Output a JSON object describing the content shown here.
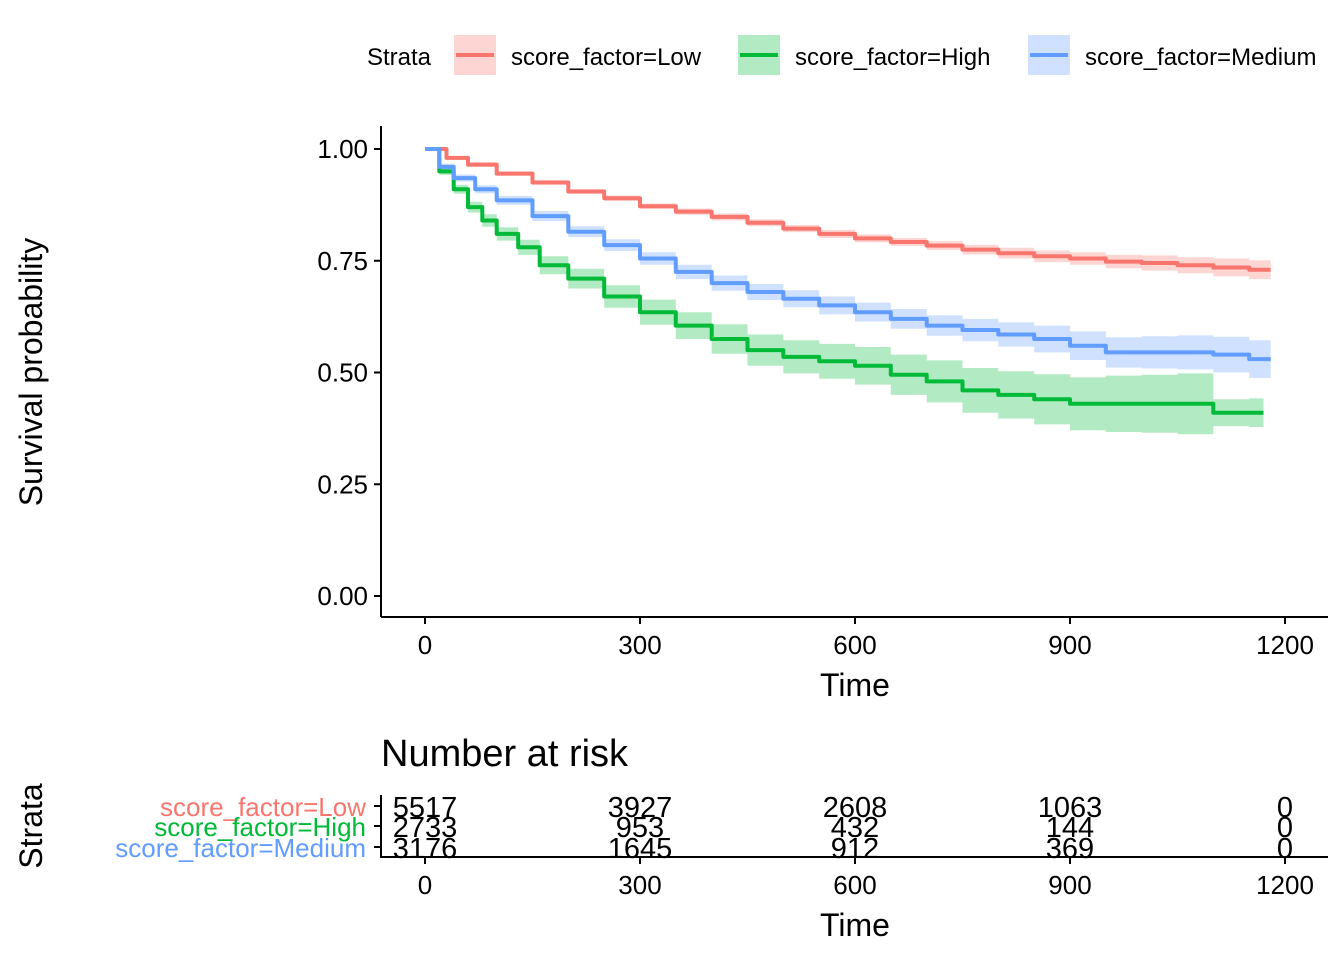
{
  "chart_data": {
    "type": "line",
    "subtype": "kaplan-meier survival curves with risk table",
    "legend": {
      "title": "Strata",
      "position": "top",
      "entries": [
        "score_factor=Low",
        "score_factor=High",
        "score_factor=Medium"
      ]
    },
    "xlabel": "Time",
    "ylabel": "Survival probability",
    "xlim": [
      -100,
      1200
    ],
    "ylim": [
      -0.05,
      1.05
    ],
    "xticks": [
      0,
      300,
      600,
      900,
      1200
    ],
    "xtick_labels": [
      "0",
      "300",
      "600",
      "900",
      "1200"
    ],
    "yticks": [
      0,
      0.25,
      0.5,
      0.75,
      1
    ],
    "ytick_labels": [
      "0.00",
      "0.25",
      "0.50",
      "0.75",
      "1.00"
    ],
    "series": [
      {
        "name": "score_factor=Low",
        "color": "#F8766D",
        "confidence_band": true,
        "x": [
          0,
          30,
          60,
          100,
          150,
          200,
          250,
          300,
          350,
          400,
          450,
          500,
          550,
          600,
          650,
          700,
          750,
          800,
          850,
          900,
          950,
          1000,
          1050,
          1100,
          1150,
          1180
        ],
        "y": [
          1.0,
          0.98,
          0.965,
          0.945,
          0.925,
          0.905,
          0.89,
          0.872,
          0.86,
          0.848,
          0.835,
          0.822,
          0.81,
          0.8,
          0.792,
          0.784,
          0.775,
          0.767,
          0.76,
          0.755,
          0.748,
          0.745,
          0.74,
          0.735,
          0.73,
          0.73
        ],
        "lower": [
          1.0,
          0.976,
          0.96,
          0.94,
          0.92,
          0.9,
          0.884,
          0.866,
          0.853,
          0.84,
          0.827,
          0.814,
          0.801,
          0.791,
          0.783,
          0.774,
          0.764,
          0.755,
          0.747,
          0.741,
          0.733,
          0.728,
          0.722,
          0.715,
          0.709,
          0.707
        ],
        "upper": [
          1.0,
          0.984,
          0.97,
          0.95,
          0.93,
          0.91,
          0.896,
          0.878,
          0.867,
          0.856,
          0.843,
          0.83,
          0.819,
          0.809,
          0.801,
          0.794,
          0.786,
          0.779,
          0.773,
          0.769,
          0.763,
          0.762,
          0.758,
          0.755,
          0.751,
          0.753
        ]
      },
      {
        "name": "score_factor=High",
        "color": "#00BA38",
        "confidence_band": true,
        "x": [
          0,
          20,
          40,
          60,
          80,
          100,
          130,
          160,
          200,
          250,
          300,
          350,
          400,
          450,
          500,
          550,
          600,
          650,
          700,
          750,
          800,
          850,
          900,
          950,
          1000,
          1050,
          1100,
          1150,
          1170
        ],
        "y": [
          1.0,
          0.95,
          0.91,
          0.87,
          0.84,
          0.81,
          0.78,
          0.74,
          0.71,
          0.67,
          0.635,
          0.605,
          0.575,
          0.55,
          0.535,
          0.525,
          0.515,
          0.495,
          0.48,
          0.46,
          0.45,
          0.44,
          0.43,
          0.43,
          0.43,
          0.43,
          0.41,
          0.41,
          0.41
        ],
        "lower": [
          1.0,
          0.942,
          0.9,
          0.858,
          0.826,
          0.795,
          0.763,
          0.72,
          0.688,
          0.645,
          0.607,
          0.575,
          0.542,
          0.515,
          0.498,
          0.486,
          0.473,
          0.45,
          0.433,
          0.41,
          0.397,
          0.384,
          0.371,
          0.367,
          0.365,
          0.362,
          0.38,
          0.378,
          0.378
        ],
        "upper": [
          1.0,
          0.958,
          0.92,
          0.882,
          0.854,
          0.825,
          0.797,
          0.76,
          0.732,
          0.695,
          0.663,
          0.635,
          0.608,
          0.585,
          0.572,
          0.564,
          0.557,
          0.54,
          0.527,
          0.51,
          0.503,
          0.496,
          0.489,
          0.493,
          0.495,
          0.498,
          0.44,
          0.442,
          0.442
        ]
      },
      {
        "name": "score_factor=Medium",
        "color": "#619CFF",
        "confidence_band": true,
        "x": [
          0,
          20,
          40,
          70,
          100,
          150,
          200,
          250,
          300,
          350,
          400,
          450,
          500,
          550,
          600,
          650,
          700,
          750,
          800,
          850,
          900,
          950,
          1000,
          1050,
          1100,
          1150,
          1180
        ],
        "y": [
          1.0,
          0.96,
          0.935,
          0.91,
          0.885,
          0.85,
          0.815,
          0.785,
          0.755,
          0.725,
          0.7,
          0.68,
          0.665,
          0.65,
          0.635,
          0.62,
          0.605,
          0.595,
          0.585,
          0.575,
          0.56,
          0.545,
          0.545,
          0.545,
          0.54,
          0.53,
          0.53
        ],
        "lower": [
          1.0,
          0.953,
          0.927,
          0.901,
          0.875,
          0.839,
          0.803,
          0.772,
          0.741,
          0.709,
          0.683,
          0.662,
          0.646,
          0.63,
          0.614,
          0.598,
          0.582,
          0.57,
          0.558,
          0.545,
          0.528,
          0.511,
          0.509,
          0.507,
          0.5,
          0.488,
          0.486
        ],
        "upper": [
          1.0,
          0.967,
          0.943,
          0.919,
          0.895,
          0.861,
          0.827,
          0.798,
          0.769,
          0.741,
          0.717,
          0.698,
          0.684,
          0.67,
          0.656,
          0.642,
          0.628,
          0.62,
          0.612,
          0.605,
          0.592,
          0.579,
          0.581,
          0.583,
          0.58,
          0.572,
          0.574
        ]
      }
    ],
    "risk_table": {
      "title": "Number at risk",
      "ylabel": "Strata",
      "xlabel": "Time",
      "times": [
        0,
        300,
        600,
        900,
        1200
      ],
      "time_labels": [
        "0",
        "300",
        "600",
        "900",
        "1200"
      ],
      "rows": [
        {
          "label": "score_factor=Low",
          "color": "#F8766D",
          "counts": [
            "5517",
            "3927",
            "2608",
            "1063",
            "0"
          ]
        },
        {
          "label": "score_factor=High",
          "color": "#00BA38",
          "counts": [
            "2733",
            "953",
            "432",
            "144",
            "0"
          ]
        },
        {
          "label": "score_factor=Medium",
          "color": "#619CFF",
          "counts": [
            "3176",
            "1645",
            "912",
            "369",
            "0"
          ]
        }
      ]
    }
  }
}
